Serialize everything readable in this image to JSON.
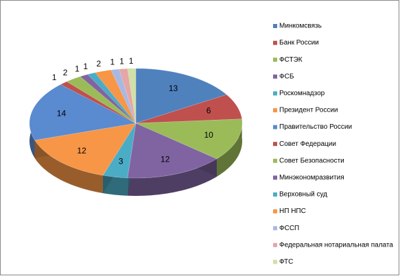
{
  "chart_data": {
    "type": "pie",
    "categories": [
      "Минкомсвязь",
      "Банк России",
      "ФСТЭК",
      "ФСБ",
      "Роскомнадзор",
      "Президент России",
      "Правительство России",
      "Совет Федерации",
      "Совет Безопасности",
      "Минэкономразвития",
      "Верховный суд",
      "НП НПС",
      "ФССП",
      "Федеральная нотариальная палата",
      "ФТС"
    ],
    "values": [
      13,
      6,
      10,
      12,
      3,
      12,
      14,
      1,
      2,
      1,
      1,
      2,
      1,
      1,
      1
    ],
    "colors": [
      "#4f81bd",
      "#c0504d",
      "#9bbb59",
      "#8064a2",
      "#4bacc6",
      "#f79646",
      "#5a8ad0",
      "#c0504d",
      "#9bbb59",
      "#8064a2",
      "#4bacc6",
      "#f79646",
      "#a7b9e3",
      "#e6a6a5",
      "#d0e0a8"
    ],
    "legend": "right"
  }
}
